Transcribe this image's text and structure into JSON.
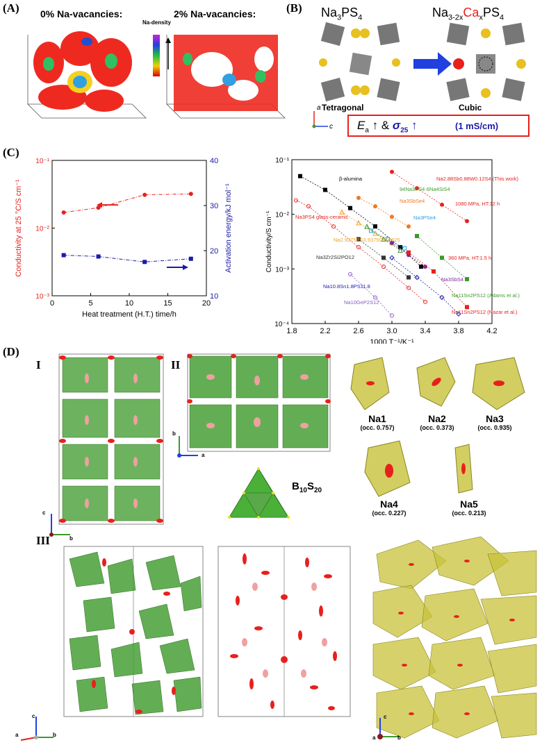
{
  "panels": {
    "A": {
      "label": "(A)",
      "title_left": "0% Na-vacancies:",
      "title_right": "2% Na-vacancies:",
      "colorbar_label": "Na-density"
    },
    "B": {
      "label": "(B)",
      "formula_left": "Na3PS4",
      "formula_right": "Na3-2xCaxPS4",
      "phase_left": "Tetragonal",
      "phase_right": "Cubic",
      "axis_a": "a",
      "axis_c": "c",
      "result_text": "Ea↑ & σ25↑",
      "result_value": "(1 mS/cm)"
    },
    "C": {
      "label": "(C)"
    },
    "D": {
      "label": "(D)",
      "sub_I": "I",
      "sub_II": "II",
      "sub_III": "III",
      "cluster_label": "B10S20",
      "sites": [
        {
          "name": "Na1",
          "occ": "(occ. 0.757)"
        },
        {
          "name": "Na2",
          "occ": "(occ. 0.373)"
        },
        {
          "name": "Na3",
          "occ": "(occ. 0.935)"
        },
        {
          "name": "Na4",
          "occ": "(occ. 0.227)"
        },
        {
          "name": "Na5",
          "occ": "(occ. 0.213)"
        }
      ],
      "axes": {
        "a": "a",
        "b": "b",
        "c": "c"
      }
    }
  },
  "colors": {
    "red": "#e8201c",
    "blue": "#1a1aa8",
    "green": "#3c9a2a",
    "yellow": "#c8c23a",
    "grey": "#7d7d7d"
  },
  "chart_data": [
    {
      "type": "line",
      "name": "heat-treatment-plot",
      "xlabel": "Heat treatment (H.T.) time/h",
      "ylabel": "Conductivity at 25 °C/S cm⁻¹",
      "y2label": "Activation energy/kJ mol⁻¹",
      "xlim": [
        0,
        20
      ],
      "ylim": [
        0.001,
        0.1
      ],
      "y2lim": [
        10,
        40
      ],
      "yscale": "log",
      "xticks": [
        "0",
        "5",
        "10",
        "15",
        "20"
      ],
      "yticks": [
        "10⁻³",
        "10⁻²",
        "10⁻¹"
      ],
      "y2ticks": [
        "10",
        "20",
        "30",
        "40"
      ],
      "series": [
        {
          "axis": "left",
          "color": "#e8201c",
          "x": [
            1.5,
            6,
            12,
            18
          ],
          "y": [
            0.017,
            0.02,
            0.031,
            0.032
          ]
        },
        {
          "axis": "right",
          "color": "#1a1aa8",
          "x": [
            1.5,
            6,
            12,
            18
          ],
          "y": [
            19.0,
            18.7,
            17.5,
            18.2
          ]
        }
      ]
    },
    {
      "type": "scatter",
      "name": "arrhenius-plot",
      "xlabel": "1000 T⁻¹/K⁻¹",
      "ylabel": "Conductivity/S cm⁻¹",
      "xlim": [
        1.8,
        4.2
      ],
      "ylim": [
        0.0001,
        0.1
      ],
      "yscale": "log",
      "xticks": [
        "1.8",
        "2.2",
        "2.6",
        "3.0",
        "3.4",
        "3.8",
        "4.2"
      ],
      "yticks": [
        "10⁻⁴",
        "10⁻³",
        "10⁻²",
        "10⁻¹"
      ],
      "series": [
        {
          "label": "β-alumina",
          "color": "#000000",
          "marker": "square",
          "x": [
            1.9,
            2.2,
            2.5,
            2.8,
            3.1,
            3.35
          ],
          "y": [
            0.05,
            0.028,
            0.013,
            0.006,
            0.0025,
            0.0011
          ]
        },
        {
          "label": "Na3PS4 glass-ceramic",
          "color": "#e8201c",
          "marker": "circle-open",
          "x": [
            1.85,
            2.0,
            2.3,
            2.6,
            2.9,
            3.2,
            3.4
          ],
          "y": [
            0.018,
            0.014,
            0.006,
            0.0025,
            0.0011,
            0.00045,
            0.00025
          ]
        },
        {
          "label": "Na2.9375PS3.9375Cl0.0625",
          "color": "#f0a020",
          "marker": "triangle-open",
          "x": [
            2.4,
            2.6,
            2.8,
            3.0
          ],
          "y": [
            0.011,
            0.007,
            0.0045,
            0.003
          ]
        },
        {
          "label": "94Na3PS4·6Na4SiS4",
          "color": "#3c9a2a",
          "marker": "triangle-open",
          "x": [
            2.7,
            2.9,
            3.1
          ],
          "y": [
            0.006,
            0.0035,
            0.0022
          ]
        },
        {
          "label": "Na3SbSe4",
          "color": "#f07820",
          "marker": "circle",
          "x": [
            2.6,
            2.8,
            3.0,
            3.2
          ],
          "y": [
            0.02,
            0.014,
            0.009,
            0.006
          ]
        },
        {
          "label": "Na3PSe4",
          "color": "#2aa0e0",
          "marker": "square-open",
          "x": [
            2.75,
            2.95,
            3.15
          ],
          "y": [
            0.005,
            0.0035,
            0.0024
          ]
        },
        {
          "label": "Na3SbS4",
          "color": "#7a2aa0",
          "marker": "circle",
          "x": [
            3.0,
            3.2,
            3.4
          ],
          "y": [
            0.003,
            0.0018,
            0.0011
          ]
        },
        {
          "label": "Na3Zr2Si2PO12",
          "color": "#333333",
          "marker": "square",
          "x": [
            2.6,
            2.9,
            3.2
          ],
          "y": [
            0.0035,
            0.0016,
            0.0007
          ]
        },
        {
          "label": "Na10.8Sn1.8PS11.8",
          "color": "#1a1aa8",
          "marker": "diamond-open",
          "x": [
            3.0,
            3.3,
            3.6,
            3.8
          ],
          "y": [
            0.0016,
            0.0007,
            0.0003,
            0.00015
          ]
        },
        {
          "label": "Na10GeP2S12",
          "color": "#8a5ac8",
          "marker": "circle-open",
          "x": [
            2.5,
            2.8,
            3.0
          ],
          "y": [
            0.0008,
            0.0003,
            0.00014
          ]
        },
        {
          "label": "Na2.88Sb0.88W0.12S4 (This work)",
          "color": "#e8201c",
          "marker": "circle",
          "x": [
            3.0,
            3.3,
            3.6,
            3.9
          ],
          "y": [
            0.06,
            0.03,
            0.015,
            0.0075
          ]
        },
        {
          "label": "Na11Sn2PS12 (Adams et al.)",
          "color": "#3c9a2a",
          "marker": "square",
          "x": [
            3.3,
            3.6,
            3.9
          ],
          "y": [
            0.004,
            0.0016,
            0.00065
          ]
        },
        {
          "label": "Na11Sn2PS12 (Nazar et al.)",
          "color": "#e8201c",
          "marker": "square",
          "x": [
            3.2,
            3.5,
            3.9
          ],
          "y": [
            0.002,
            0.0009,
            0.0002
          ]
        }
      ],
      "annotations": [
        "1080 MPa, HT:12 h",
        "360 MPa, HT:1.5 h"
      ]
    }
  ]
}
